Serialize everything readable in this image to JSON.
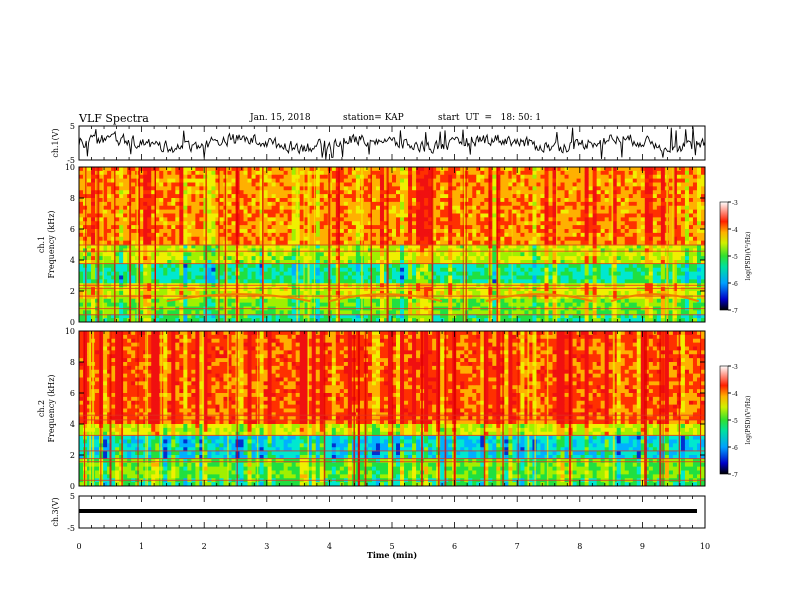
{
  "header": {
    "title": "VLF Spectra",
    "date": "Jan. 15, 2018",
    "station": "station= KAP",
    "start": "start  UT  =   18: 50: 1"
  },
  "chart_data": [
    {
      "type": "line",
      "panel": "ch1-waveform",
      "ylabel": "ch.1(V)",
      "ylim": [
        -5,
        5
      ],
      "yticks": [
        "5",
        "-5"
      ],
      "xlim": [
        0,
        10
      ],
      "color": "#000000"
    },
    {
      "type": "heatmap",
      "panel": "ch1-spectrogram",
      "ylabel": "ch.1\nFrequency (kHz)",
      "ylabel_line1": "ch.1",
      "ylabel_line2": "Frequency  (kHz)",
      "ylim": [
        0,
        10
      ],
      "yticks": [
        "0",
        "2",
        "4",
        "6",
        "8",
        "10"
      ],
      "xlim": [
        0,
        10
      ],
      "colorbar": {
        "label": "log(PSD)(V²/Hz)",
        "ticks": [
          "-3",
          "-4",
          "-5",
          "-6",
          "-7"
        ],
        "range": [
          -7,
          -3
        ]
      }
    },
    {
      "type": "heatmap",
      "panel": "ch2-spectrogram",
      "ylabel_line1": "ch.2",
      "ylabel_line2": "Frequency  (kHz)",
      "ylim": [
        0,
        10
      ],
      "yticks": [
        "0",
        "2",
        "4",
        "6",
        "8",
        "10"
      ],
      "xlim": [
        0,
        10
      ],
      "colorbar": {
        "label": "log(PSD)(V²/Hz)",
        "ticks": [
          "-3",
          "-4",
          "-5",
          "-6",
          "-7"
        ],
        "range": [
          -7,
          -3
        ]
      }
    },
    {
      "type": "line",
      "panel": "ch3-waveform",
      "ylabel": "ch.3(V)",
      "ylim": [
        -5,
        5
      ],
      "yticks": [
        "5",
        "-5"
      ],
      "xlim": [
        0,
        10
      ],
      "xlabel": "Time  (min)",
      "xticks": [
        "0",
        "1",
        "2",
        "3",
        "4",
        "5",
        "6",
        "7",
        "8",
        "9",
        "10"
      ],
      "color": "#000000"
    }
  ]
}
